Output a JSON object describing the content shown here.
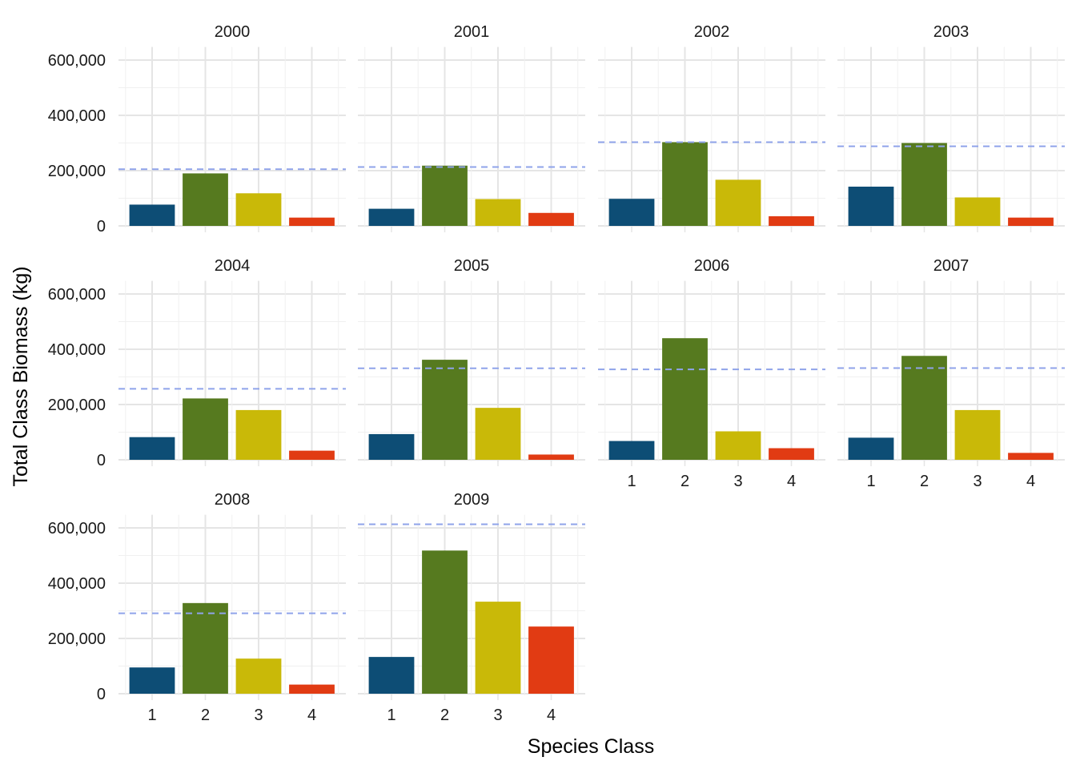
{
  "chart_data": {
    "type": "bar",
    "layout": "facet_wrap",
    "xlabel": "Species Class",
    "ylabel": "Total Class Biomass (kg)",
    "categories": [
      "1",
      "2",
      "3",
      "4"
    ],
    "colors": [
      "#0d4d75",
      "#567a1f",
      "#c9b908",
      "#e13b13"
    ],
    "reference_line_color": "#8fa3ea",
    "ylim": [
      0,
      620000
    ],
    "y_ticks": [
      0,
      200000,
      400000,
      600000
    ],
    "y_tick_labels": [
      "0",
      "200,000",
      "400,000",
      "600,000"
    ],
    "grid": true,
    "panels": [
      {
        "label": "2000",
        "values": [
          77000,
          190000,
          118000,
          30000
        ],
        "reference_line": 205000
      },
      {
        "label": "2001",
        "values": [
          62000,
          218000,
          97000,
          47000
        ],
        "reference_line": 213000
      },
      {
        "label": "2002",
        "values": [
          98000,
          303000,
          167000,
          35000
        ],
        "reference_line": 303000
      },
      {
        "label": "2003",
        "values": [
          142000,
          300000,
          103000,
          30000
        ],
        "reference_line": 288000
      },
      {
        "label": "2004",
        "values": [
          82000,
          222000,
          180000,
          33000
        ],
        "reference_line": 257000
      },
      {
        "label": "2005",
        "values": [
          93000,
          362000,
          188000,
          19000
        ],
        "reference_line": 331000
      },
      {
        "label": "2006",
        "values": [
          68000,
          440000,
          103000,
          42000
        ],
        "reference_line": 327000
      },
      {
        "label": "2007",
        "values": [
          80000,
          376000,
          180000,
          25000
        ],
        "reference_line": 332000
      },
      {
        "label": "2008",
        "values": [
          95000,
          328000,
          127000,
          33000
        ],
        "reference_line": 291000
      },
      {
        "label": "2009",
        "values": [
          133000,
          518000,
          333000,
          243000
        ],
        "reference_line": 613000
      }
    ]
  }
}
